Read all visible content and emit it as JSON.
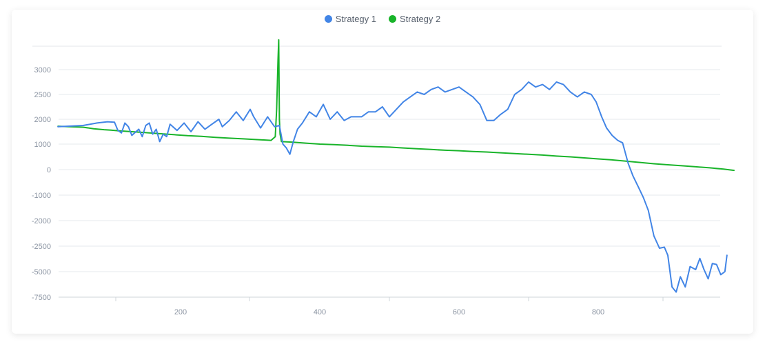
{
  "chart_data": {
    "type": "line",
    "title": "",
    "xlabel": "",
    "ylabel": "",
    "x_ticks": [
      200,
      400,
      600,
      800
    ],
    "y_ticks": [
      3000,
      2500,
      2000,
      1000,
      0,
      -1000,
      -2000,
      -2500,
      -5000,
      -7500
    ],
    "y_tick_labels": [
      "3000",
      "2500",
      "2000",
      "1000",
      "0",
      "-1000",
      "-2000",
      "-2500",
      "-5000",
      "-7500"
    ],
    "x_tick_labels": [
      "200",
      "400",
      "600",
      "800"
    ],
    "grid": true,
    "legend_position": "top-center",
    "series": [
      {
        "name": "Strategy 1",
        "color": "#4285e6",
        "points": [
          [
            24,
            1700
          ],
          [
            60,
            1750
          ],
          [
            80,
            1850
          ],
          [
            95,
            1900
          ],
          [
            105,
            1880
          ],
          [
            110,
            1550
          ],
          [
            115,
            1450
          ],
          [
            120,
            1850
          ],
          [
            125,
            1700
          ],
          [
            130,
            1350
          ],
          [
            140,
            1600
          ],
          [
            145,
            1300
          ],
          [
            150,
            1750
          ],
          [
            155,
            1850
          ],
          [
            160,
            1400
          ],
          [
            165,
            1600
          ],
          [
            170,
            1100
          ],
          [
            175,
            1400
          ],
          [
            180,
            1300
          ],
          [
            185,
            1800
          ],
          [
            195,
            1550
          ],
          [
            205,
            1850
          ],
          [
            215,
            1500
          ],
          [
            225,
            1900
          ],
          [
            235,
            1600
          ],
          [
            245,
            1800
          ],
          [
            255,
            2000
          ],
          [
            260,
            1700
          ],
          [
            270,
            1950
          ],
          [
            280,
            2150
          ],
          [
            290,
            1950
          ],
          [
            300,
            2200
          ],
          [
            305,
            2050
          ],
          [
            315,
            1650
          ],
          [
            325,
            2050
          ],
          [
            335,
            1700
          ],
          [
            342,
            1750
          ],
          [
            347,
            1000
          ],
          [
            352,
            850
          ],
          [
            357,
            600
          ],
          [
            362,
            1100
          ],
          [
            368,
            1600
          ],
          [
            375,
            1850
          ],
          [
            385,
            2150
          ],
          [
            395,
            2050
          ],
          [
            405,
            2300
          ],
          [
            415,
            2000
          ],
          [
            425,
            2150
          ],
          [
            435,
            1950
          ],
          [
            445,
            2050
          ],
          [
            460,
            2050
          ],
          [
            470,
            2150
          ],
          [
            480,
            2150
          ],
          [
            490,
            2250
          ],
          [
            500,
            2050
          ],
          [
            510,
            2200
          ],
          [
            520,
            2350
          ],
          [
            530,
            2450
          ],
          [
            540,
            2550
          ],
          [
            550,
            2500
          ],
          [
            560,
            2600
          ],
          [
            570,
            2650
          ],
          [
            580,
            2550
          ],
          [
            590,
            2600
          ],
          [
            600,
            2650
          ],
          [
            610,
            2550
          ],
          [
            620,
            2450
          ],
          [
            630,
            2300
          ],
          [
            640,
            1950
          ],
          [
            650,
            1950
          ],
          [
            660,
            2100
          ],
          [
            670,
            2200
          ],
          [
            680,
            2500
          ],
          [
            690,
            2600
          ],
          [
            700,
            2750
          ],
          [
            710,
            2650
          ],
          [
            720,
            2700
          ],
          [
            730,
            2600
          ],
          [
            740,
            2750
          ],
          [
            750,
            2700
          ],
          [
            760,
            2550
          ],
          [
            770,
            2450
          ],
          [
            780,
            2550
          ],
          [
            790,
            2500
          ],
          [
            797,
            2350
          ],
          [
            805,
            2050
          ],
          [
            812,
            1650
          ],
          [
            820,
            1350
          ],
          [
            828,
            1150
          ],
          [
            835,
            1050
          ],
          [
            843,
            250
          ],
          [
            850,
            -250
          ],
          [
            858,
            -700
          ],
          [
            865,
            -1100
          ],
          [
            872,
            -1600
          ],
          [
            880,
            -2300
          ],
          [
            888,
            -2700
          ],
          [
            895,
            -2600
          ],
          [
            900,
            -3400
          ],
          [
            906,
            -6500
          ],
          [
            912,
            -7000
          ],
          [
            918,
            -5500
          ],
          [
            925,
            -6500
          ],
          [
            932,
            -4500
          ],
          [
            940,
            -4800
          ],
          [
            946,
            -3700
          ],
          [
            952,
            -4800
          ],
          [
            958,
            -5700
          ],
          [
            964,
            -4200
          ],
          [
            970,
            -4300
          ],
          [
            976,
            -5300
          ],
          [
            982,
            -5000
          ],
          [
            985,
            -3400
          ]
        ]
      },
      {
        "name": "Strategy 2",
        "color": "#19b42a",
        "points": [
          [
            24,
            1720
          ],
          [
            40,
            1700
          ],
          [
            60,
            1680
          ],
          [
            75,
            1620
          ],
          [
            90,
            1580
          ],
          [
            100,
            1560
          ],
          [
            110,
            1540
          ],
          [
            130,
            1500
          ],
          [
            150,
            1460
          ],
          [
            170,
            1420
          ],
          [
            190,
            1380
          ],
          [
            210,
            1340
          ],
          [
            230,
            1310
          ],
          [
            250,
            1270
          ],
          [
            270,
            1240
          ],
          [
            290,
            1210
          ],
          [
            310,
            1180
          ],
          [
            330,
            1150
          ],
          [
            336,
            1300
          ],
          [
            338,
            2200
          ],
          [
            340,
            3200
          ],
          [
            341,
            3600
          ],
          [
            342,
            2000
          ],
          [
            343,
            1400
          ],
          [
            345,
            1100
          ],
          [
            360,
            1080
          ],
          [
            380,
            1040
          ],
          [
            400,
            1000
          ],
          [
            420,
            980
          ],
          [
            440,
            950
          ],
          [
            460,
            920
          ],
          [
            480,
            900
          ],
          [
            500,
            880
          ],
          [
            520,
            850
          ],
          [
            540,
            820
          ],
          [
            560,
            790
          ],
          [
            580,
            760
          ],
          [
            600,
            740
          ],
          [
            620,
            710
          ],
          [
            640,
            690
          ],
          [
            660,
            660
          ],
          [
            680,
            630
          ],
          [
            700,
            600
          ],
          [
            720,
            570
          ],
          [
            740,
            530
          ],
          [
            760,
            500
          ],
          [
            780,
            460
          ],
          [
            800,
            420
          ],
          [
            820,
            380
          ],
          [
            840,
            330
          ],
          [
            860,
            280
          ],
          [
            880,
            230
          ],
          [
            900,
            190
          ],
          [
            920,
            150
          ],
          [
            940,
            110
          ],
          [
            960,
            70
          ],
          [
            980,
            20
          ],
          [
            995,
            -30
          ]
        ]
      }
    ]
  }
}
